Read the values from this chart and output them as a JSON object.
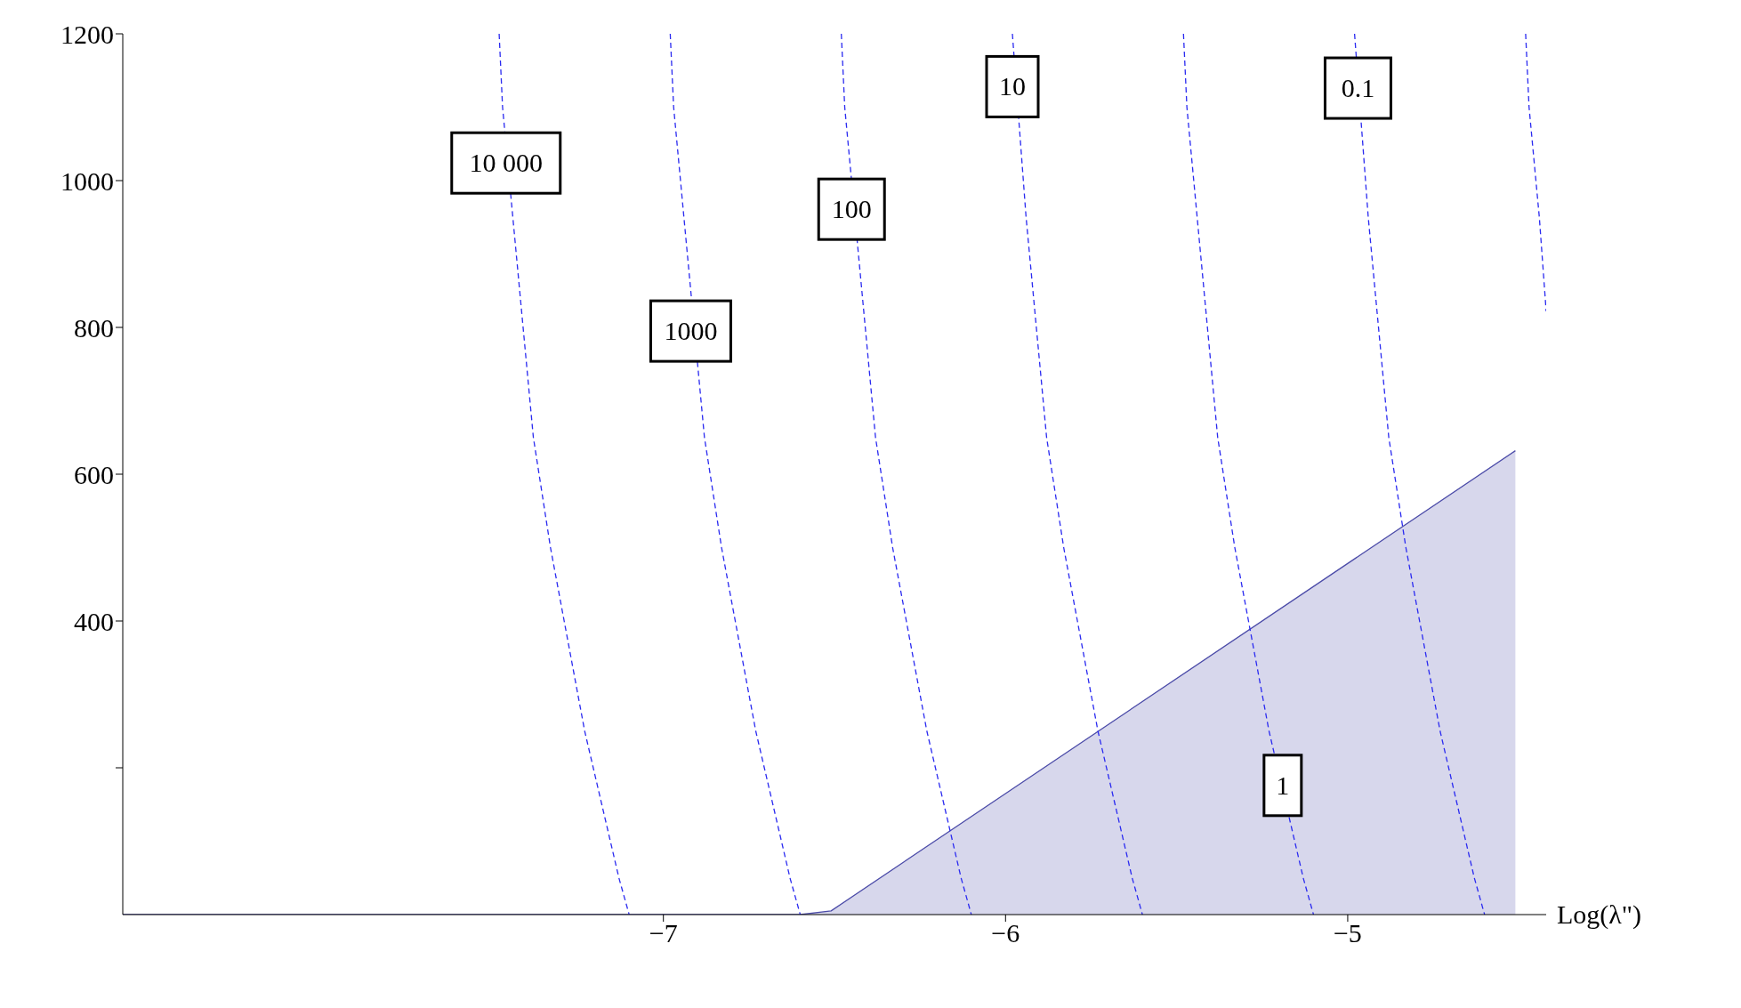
{
  "chart_data": {
    "type": "line",
    "xlabel": "Log(λ\")",
    "xlim": [
      -8.58,
      -4.42
    ],
    "xticks": [
      -7,
      -6,
      -5
    ],
    "ylim": [
      0,
      1200
    ],
    "yticks": [
      {
        "value": 200,
        "label": null
      },
      400,
      600,
      800,
      1000,
      1200
    ],
    "grid": false,
    "marker": "none",
    "series": [
      {
        "type": "area",
        "color": "#4b4ba8",
        "x": [
          -8.58,
          -6.6,
          -6.51,
          -4.51
        ],
        "values": [
          0,
          0,
          5,
          632
        ],
        "line_style": "solid"
      },
      {
        "color": "#2a2af0",
        "line_style": "dashed",
        "x": [
          -7.48,
          -7.47,
          -7.44,
          -7.41,
          -7.38,
          -7.33,
          -7.29,
          -7.23,
          -7.18,
          -7.13,
          -7.1
        ],
        "values": [
          1200,
          1100,
          950,
          800,
          650,
          500,
          400,
          250,
          150,
          50,
          0
        ]
      },
      {
        "color": "#2a2af0",
        "line_style": "dashed",
        "x": [
          -6.98,
          -6.97,
          -6.94,
          -6.88,
          -6.83,
          -6.79,
          -6.73,
          -6.68,
          -6.63,
          -6.6
        ],
        "values": [
          1200,
          1100,
          950,
          650,
          500,
          400,
          250,
          150,
          50,
          0
        ]
      },
      {
        "color": "#2a2af0",
        "line_style": "dashed",
        "x": [
          -6.48,
          -6.47,
          -6.41,
          -6.38,
          -6.33,
          -6.29,
          -6.23,
          -6.18,
          -6.13,
          -6.1
        ],
        "values": [
          1200,
          1100,
          800,
          650,
          500,
          400,
          250,
          150,
          50,
          0
        ]
      },
      {
        "color": "#2a2af0",
        "line_style": "dashed",
        "x": [
          -5.98,
          -5.94,
          -5.91,
          -5.88,
          -5.83,
          -5.79,
          -5.73,
          -5.68,
          -5.63,
          -5.6
        ],
        "values": [
          1200,
          950,
          800,
          650,
          500,
          400,
          250,
          150,
          50,
          0
        ]
      },
      {
        "color": "#2a2af0",
        "line_style": "dashed",
        "x": [
          -5.48,
          -5.47,
          -5.44,
          -5.41,
          -5.38,
          -5.33,
          -5.29,
          -5.23,
          -5.13,
          -5.1
        ],
        "values": [
          1200,
          1100,
          950,
          800,
          650,
          500,
          400,
          250,
          50,
          0
        ]
      },
      {
        "color": "#2a2af0",
        "line_style": "dashed",
        "x": [
          -4.98,
          -4.94,
          -4.91,
          -4.88,
          -4.83,
          -4.79,
          -4.73,
          -4.68,
          -4.63,
          -4.6
        ],
        "values": [
          1200,
          950,
          800,
          650,
          500,
          400,
          250,
          150,
          50,
          0
        ]
      },
      {
        "color": "#2a2af0",
        "line_style": "dashed",
        "x": [
          -4.48,
          -4.47,
          -4.44,
          -4.42
        ],
        "values": [
          1200,
          1100,
          950,
          822
        ]
      }
    ],
    "annotations": [
      {
        "text": "10 000",
        "x": -7.46,
        "y": 1024
      },
      {
        "text": "1000",
        "x": -6.92,
        "y": 795
      },
      {
        "text": "100",
        "x": -6.45,
        "y": 961
      },
      {
        "text": "10",
        "x": -5.98,
        "y": 1128
      },
      {
        "text": "1",
        "x": -5.19,
        "y": 176
      },
      {
        "text": "0.1",
        "x": -4.97,
        "y": 1126
      }
    ]
  }
}
